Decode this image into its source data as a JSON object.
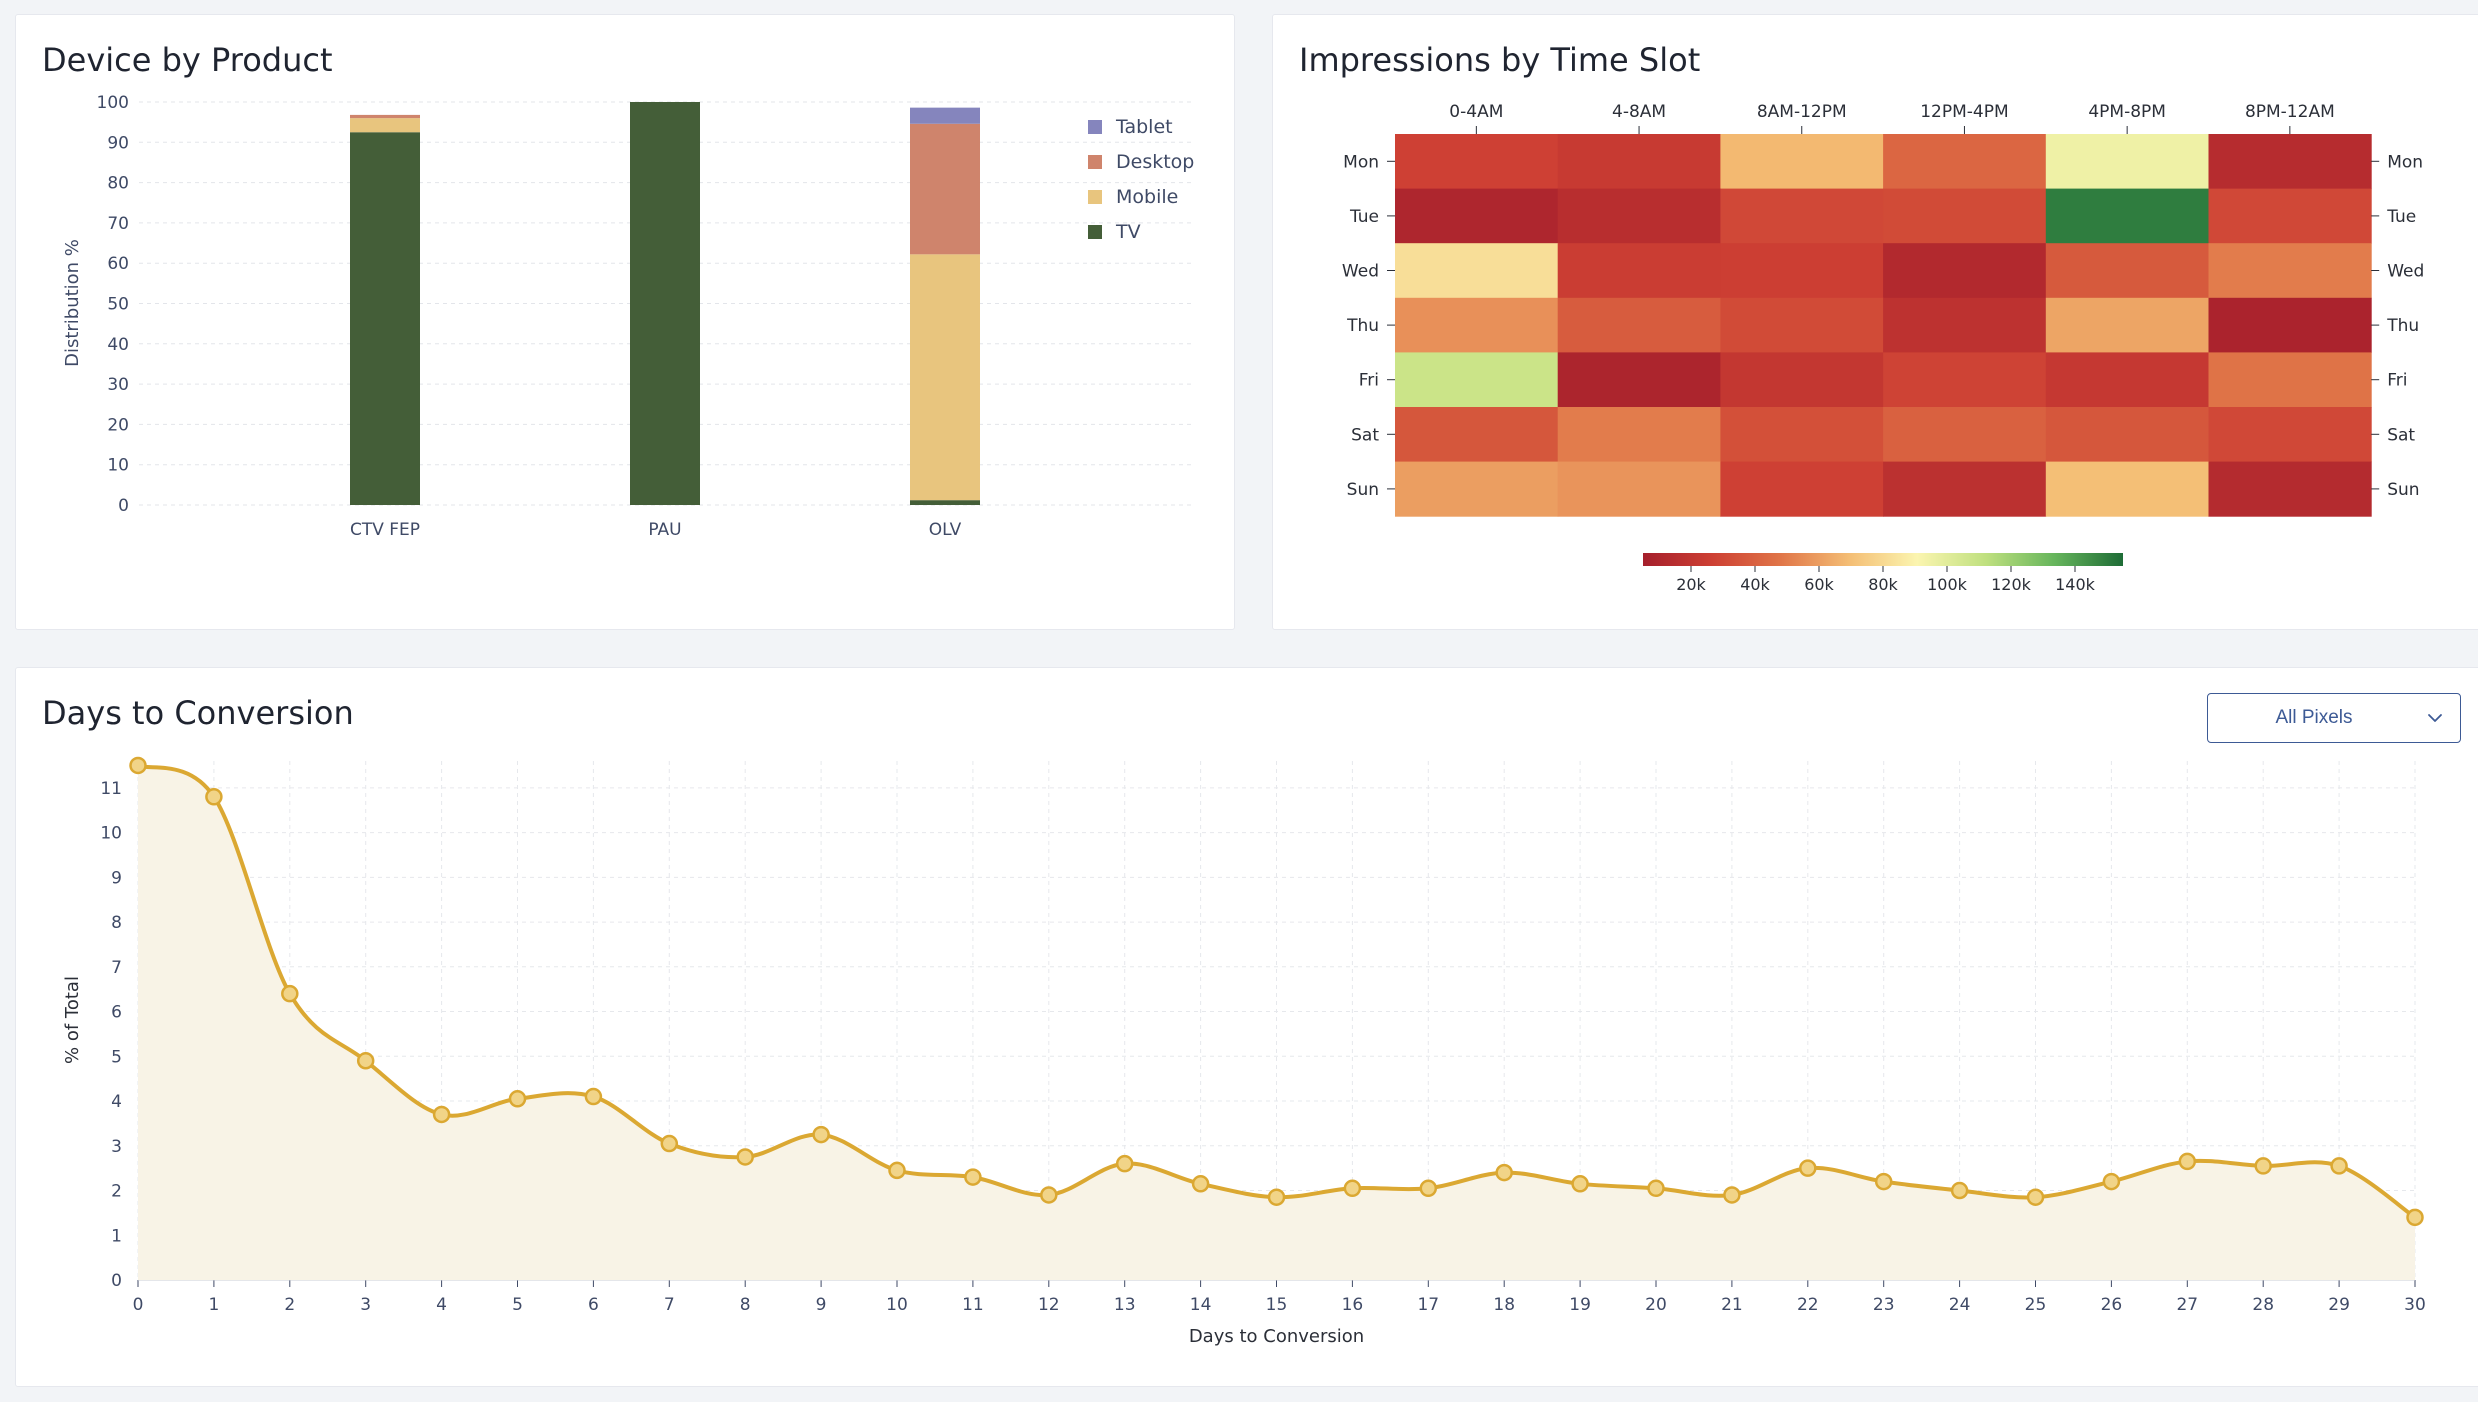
{
  "device_chart": {
    "title": "Device by Product",
    "chart_data": {
      "type": "bar",
      "stacked": true,
      "ylabel": "Distribution %",
      "ylim": [
        0,
        100
      ],
      "yticks": [
        0,
        10,
        20,
        30,
        40,
        50,
        60,
        70,
        80,
        90,
        100
      ],
      "categories": [
        "CTV FEP",
        "PAU",
        "OLV"
      ],
      "series": [
        {
          "name": "TV",
          "color": "#445e38",
          "values": [
            92.5,
            100,
            1.2
          ]
        },
        {
          "name": "Mobile",
          "color": "#e8c57e",
          "values": [
            3.5,
            0,
            61.0
          ]
        },
        {
          "name": "Desktop",
          "color": "#cf846c",
          "values": [
            0.8,
            0,
            32.4
          ]
        },
        {
          "name": "Tablet",
          "color": "#8585bd",
          "values": [
            0,
            0,
            4.0
          ]
        }
      ],
      "legend": [
        "Tablet",
        "Desktop",
        "Mobile",
        "TV"
      ],
      "legend_position": "top-right"
    }
  },
  "heatmap_chart": {
    "title": "Impressions by Time Slot",
    "chart_data": {
      "type": "heatmap",
      "columns": [
        "0-4AM",
        "4-8AM",
        "8AM-12PM",
        "12PM-4PM",
        "4PM-8PM",
        "8PM-12AM"
      ],
      "rows": [
        "Mon",
        "Tue",
        "Wed",
        "Thu",
        "Fri",
        "Sat",
        "Sun"
      ],
      "values": [
        [
          27000,
          23000,
          68000,
          42000,
          95000,
          14000
        ],
        [
          10000,
          15000,
          30000,
          31000,
          150000,
          30000
        ],
        [
          82000,
          25000,
          26000,
          12000,
          37000,
          50000
        ],
        [
          56000,
          38000,
          31000,
          18000,
          62000,
          8000
        ],
        [
          108000,
          9000,
          21000,
          28000,
          22000,
          47000
        ],
        [
          36000,
          50000,
          33000,
          40000,
          36000,
          30000
        ],
        [
          60000,
          57000,
          27000,
          17000,
          70000,
          13000
        ]
      ],
      "scale_min": 5000,
      "scale_max": 155000,
      "scale_ticks": [
        "20k",
        "40k",
        "60k",
        "80k",
        "100k",
        "120k",
        "140k"
      ],
      "scale_tick_values": [
        20000,
        40000,
        60000,
        80000,
        100000,
        120000,
        140000
      ],
      "colors": [
        "#a51f2c",
        "#cd3f33",
        "#e07548",
        "#f4bd74",
        "#fbf5b0",
        "#bfe07f",
        "#66b55c",
        "#1e6c36"
      ]
    }
  },
  "conversion_chart": {
    "title": "Days to Conversion",
    "dropdown_label": "All Pixels",
    "chart_data": {
      "type": "area",
      "xlabel": "Days to Conversion",
      "ylabel": "% of Total",
      "xlim": [
        0,
        30
      ],
      "ylim": [
        0,
        11.6
      ],
      "xticks": [
        0,
        1,
        2,
        3,
        4,
        5,
        6,
        7,
        8,
        9,
        10,
        11,
        12,
        13,
        14,
        15,
        16,
        17,
        18,
        19,
        20,
        21,
        22,
        23,
        24,
        25,
        26,
        27,
        28,
        29,
        30
      ],
      "yticks": [
        0,
        1,
        2,
        3,
        4,
        5,
        6,
        7,
        8,
        9,
        10,
        11
      ],
      "x": [
        0,
        1,
        2,
        3,
        4,
        5,
        6,
        7,
        8,
        9,
        10,
        11,
        12,
        13,
        14,
        15,
        16,
        17,
        18,
        19,
        20,
        21,
        22,
        23,
        24,
        25,
        26,
        27,
        28,
        29,
        30
      ],
      "y": [
        11.5,
        10.8,
        6.4,
        4.9,
        3.7,
        4.05,
        4.1,
        3.05,
        2.75,
        3.25,
        2.45,
        2.3,
        1.9,
        2.6,
        2.15,
        1.85,
        2.05,
        2.05,
        2.4,
        2.15,
        2.05,
        1.9,
        2.5,
        2.2,
        2.0,
        1.85,
        2.2,
        2.65,
        2.55,
        2.55,
        1.4
      ],
      "line_color": "#dba832",
      "fill_color": "#f8f3e6"
    }
  }
}
